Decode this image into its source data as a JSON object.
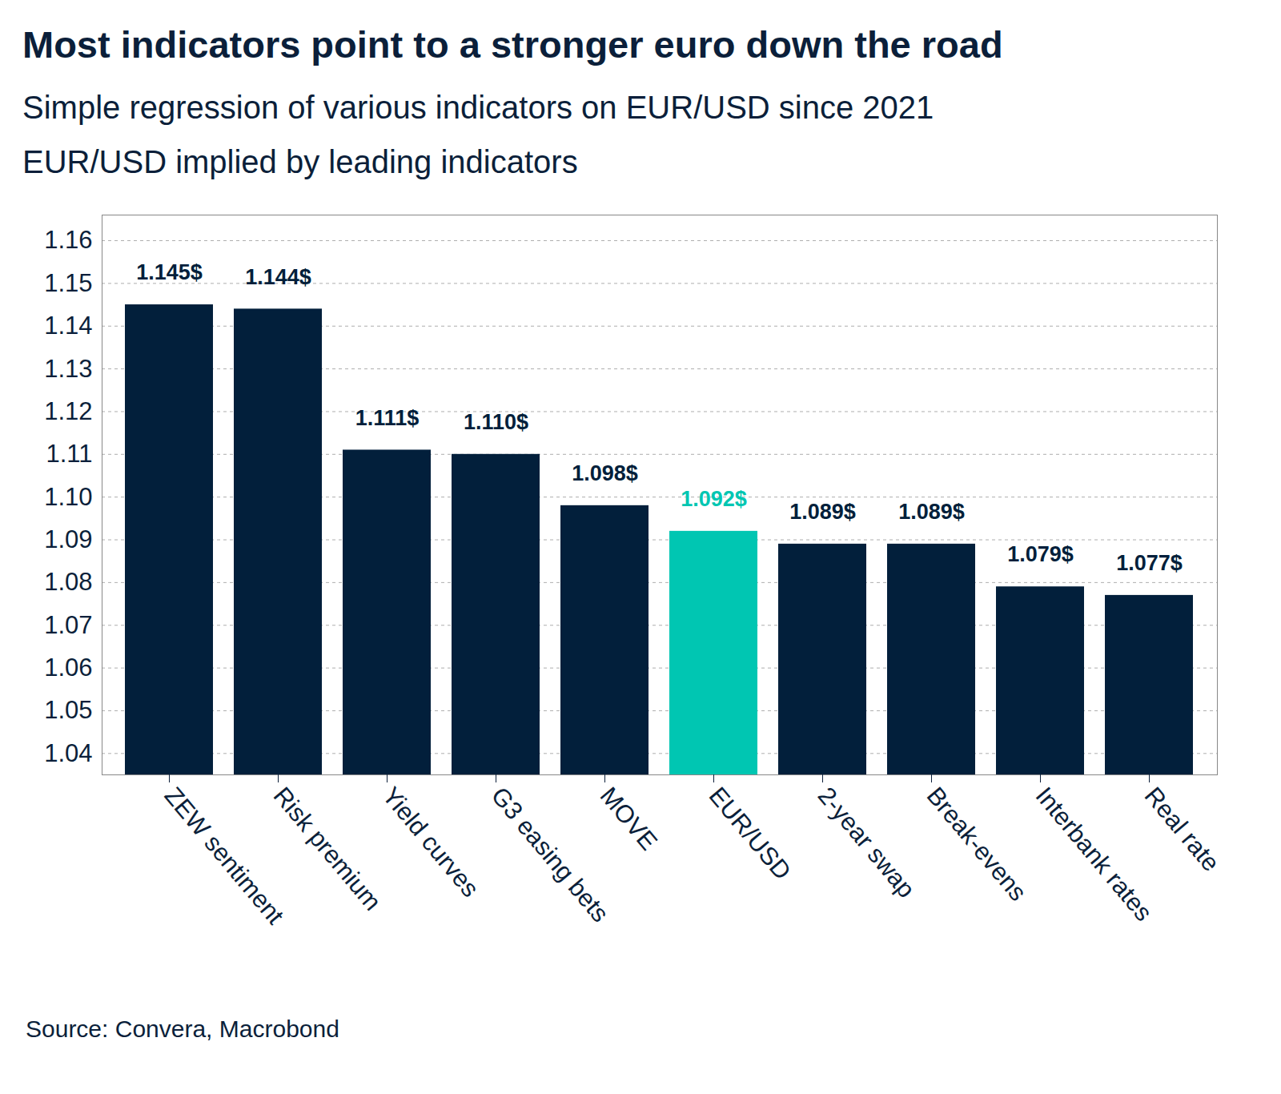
{
  "chart_data": {
    "type": "bar",
    "title": "Most indicators point to a stronger euro down the road",
    "subtitle": [
      "Simple regression of various indicators on EUR/USD since 2021",
      "EUR/USD implied by leading indicators"
    ],
    "source": "Source: Convera, Macrobond",
    "categories": [
      "ZEW sentiment",
      "Risk premium",
      "Yield curves",
      "G3 easing bets",
      "MOVE",
      "EUR/USD",
      "2-year swap",
      "Break-evens",
      "Interbank rates",
      "Real rate"
    ],
    "values": [
      1.145,
      1.144,
      1.111,
      1.11,
      1.098,
      1.092,
      1.089,
      1.089,
      1.079,
      1.077
    ],
    "value_labels": [
      "1.145$",
      "1.144$",
      "1.111$",
      "1.110$",
      "1.098$",
      "1.092$",
      "1.089$",
      "1.089$",
      "1.079$",
      "1.077$"
    ],
    "colors": [
      "#021f3b",
      "#021f3b",
      "#021f3b",
      "#021f3b",
      "#021f3b",
      "#00c6b2",
      "#021f3b",
      "#021f3b",
      "#021f3b",
      "#021f3b"
    ],
    "ylim": [
      1.035,
      1.166
    ],
    "yticks": [
      1.04,
      1.05,
      1.06,
      1.07,
      1.08,
      1.09,
      {
        "value": 1.1,
        "label": "1.10"
      },
      1.11,
      1.12,
      1.13,
      1.14,
      1.15,
      1.16
    ],
    "grid": true,
    "data_labels": true
  }
}
